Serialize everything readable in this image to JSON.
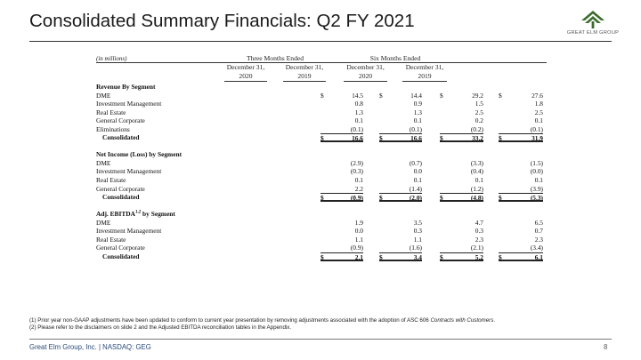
{
  "title": "Consolidated Summary Financials: Q2 FY 2021",
  "logo_text": "GREAT ELM GROUP",
  "units": "(in millions)",
  "periods": [
    "Three Months Ended",
    "Six Months Ended"
  ],
  "columns": [
    {
      "l1": "December 31,",
      "l2": "2020"
    },
    {
      "l1": "December 31,",
      "l2": "2019"
    },
    {
      "l1": "December 31,",
      "l2": "2020"
    },
    {
      "l1": "December 31,",
      "l2": "2019"
    }
  ],
  "sections": [
    {
      "heading": "Revenue By Segment",
      "rows": [
        {
          "label": "DME",
          "vals": [
            "14.5",
            "14.4",
            "29.2",
            "27.6"
          ],
          "dollar": true
        },
        {
          "label": "Investment Management",
          "vals": [
            "0.8",
            "0.9",
            "1.5",
            "1.8"
          ]
        },
        {
          "label": "Real Estate",
          "vals": [
            "1.3",
            "1.3",
            "2.5",
            "2.5"
          ]
        },
        {
          "label": "General Corporate",
          "vals": [
            "0.1",
            "0.1",
            "0.2",
            "0.1"
          ]
        },
        {
          "label": "Eliminations",
          "vals": [
            "(0.1)",
            "(0.1)",
            "(0.2)",
            "(0.1)"
          ]
        }
      ],
      "total": {
        "label": "Consolidated",
        "vals": [
          "16.6",
          "16.6",
          "33.2",
          "31.9"
        ]
      }
    },
    {
      "heading": "Net Income (Loss) by Segment",
      "rows": [
        {
          "label": "DME",
          "vals": [
            "(2.9)",
            "(0.7)",
            "(3.3)",
            "(1.5)"
          ]
        },
        {
          "label": "Investment Management",
          "vals": [
            "(0.3)",
            "0.0",
            "(0.4)",
            "(0.0)"
          ]
        },
        {
          "label": "Real Estate",
          "vals": [
            "0.1",
            "0.1",
            "0.1",
            "0.1"
          ]
        },
        {
          "label": "General Corporate",
          "vals": [
            "2.2",
            "(1.4)",
            "(1.2)",
            "(3.9)"
          ]
        }
      ],
      "total": {
        "label": "Consolidated",
        "vals": [
          "(0.9)",
          "(2.0)",
          "(4.8)",
          "(5.3)"
        ]
      }
    },
    {
      "heading": "Adj. EBITDA",
      "heading_sup": "1,2",
      "heading_tail": " by Segment",
      "rows": [
        {
          "label": "DME",
          "vals": [
            "1.9",
            "3.5",
            "4.7",
            "6.5"
          ]
        },
        {
          "label": "Investment Management",
          "vals": [
            "0.0",
            "0.3",
            "0.3",
            "0.7"
          ]
        },
        {
          "label": "Real Estate",
          "vals": [
            "1.1",
            "1.1",
            "2.3",
            "2.3"
          ]
        },
        {
          "label": "General Corporate",
          "vals": [
            "(0.9)",
            "(1.6)",
            "(2.1)",
            "(3.4)"
          ]
        }
      ],
      "total": {
        "label": "Consolidated",
        "vals": [
          "2.1",
          "3.4",
          "5.2",
          "6.1"
        ]
      }
    }
  ],
  "dollar_sign": "$",
  "notes": [
    "(1) Prior year non-GAAP adjustments have been updated to conform to current year presentation by removing adjustments associated with the adoption of ASC 606",
    "Contracts with Customers",
    ".",
    "(2) Please refer to the disclaimers on slide 2 and the Adjusted EBITDA reconciliation tables in the Appendix."
  ],
  "footer": "Great Elm Group, Inc. | NASDAQ: GEG",
  "page_number": "8",
  "colors": {
    "logo_green": "#3d6b2f",
    "footer_blue": "#2a4a7a"
  }
}
